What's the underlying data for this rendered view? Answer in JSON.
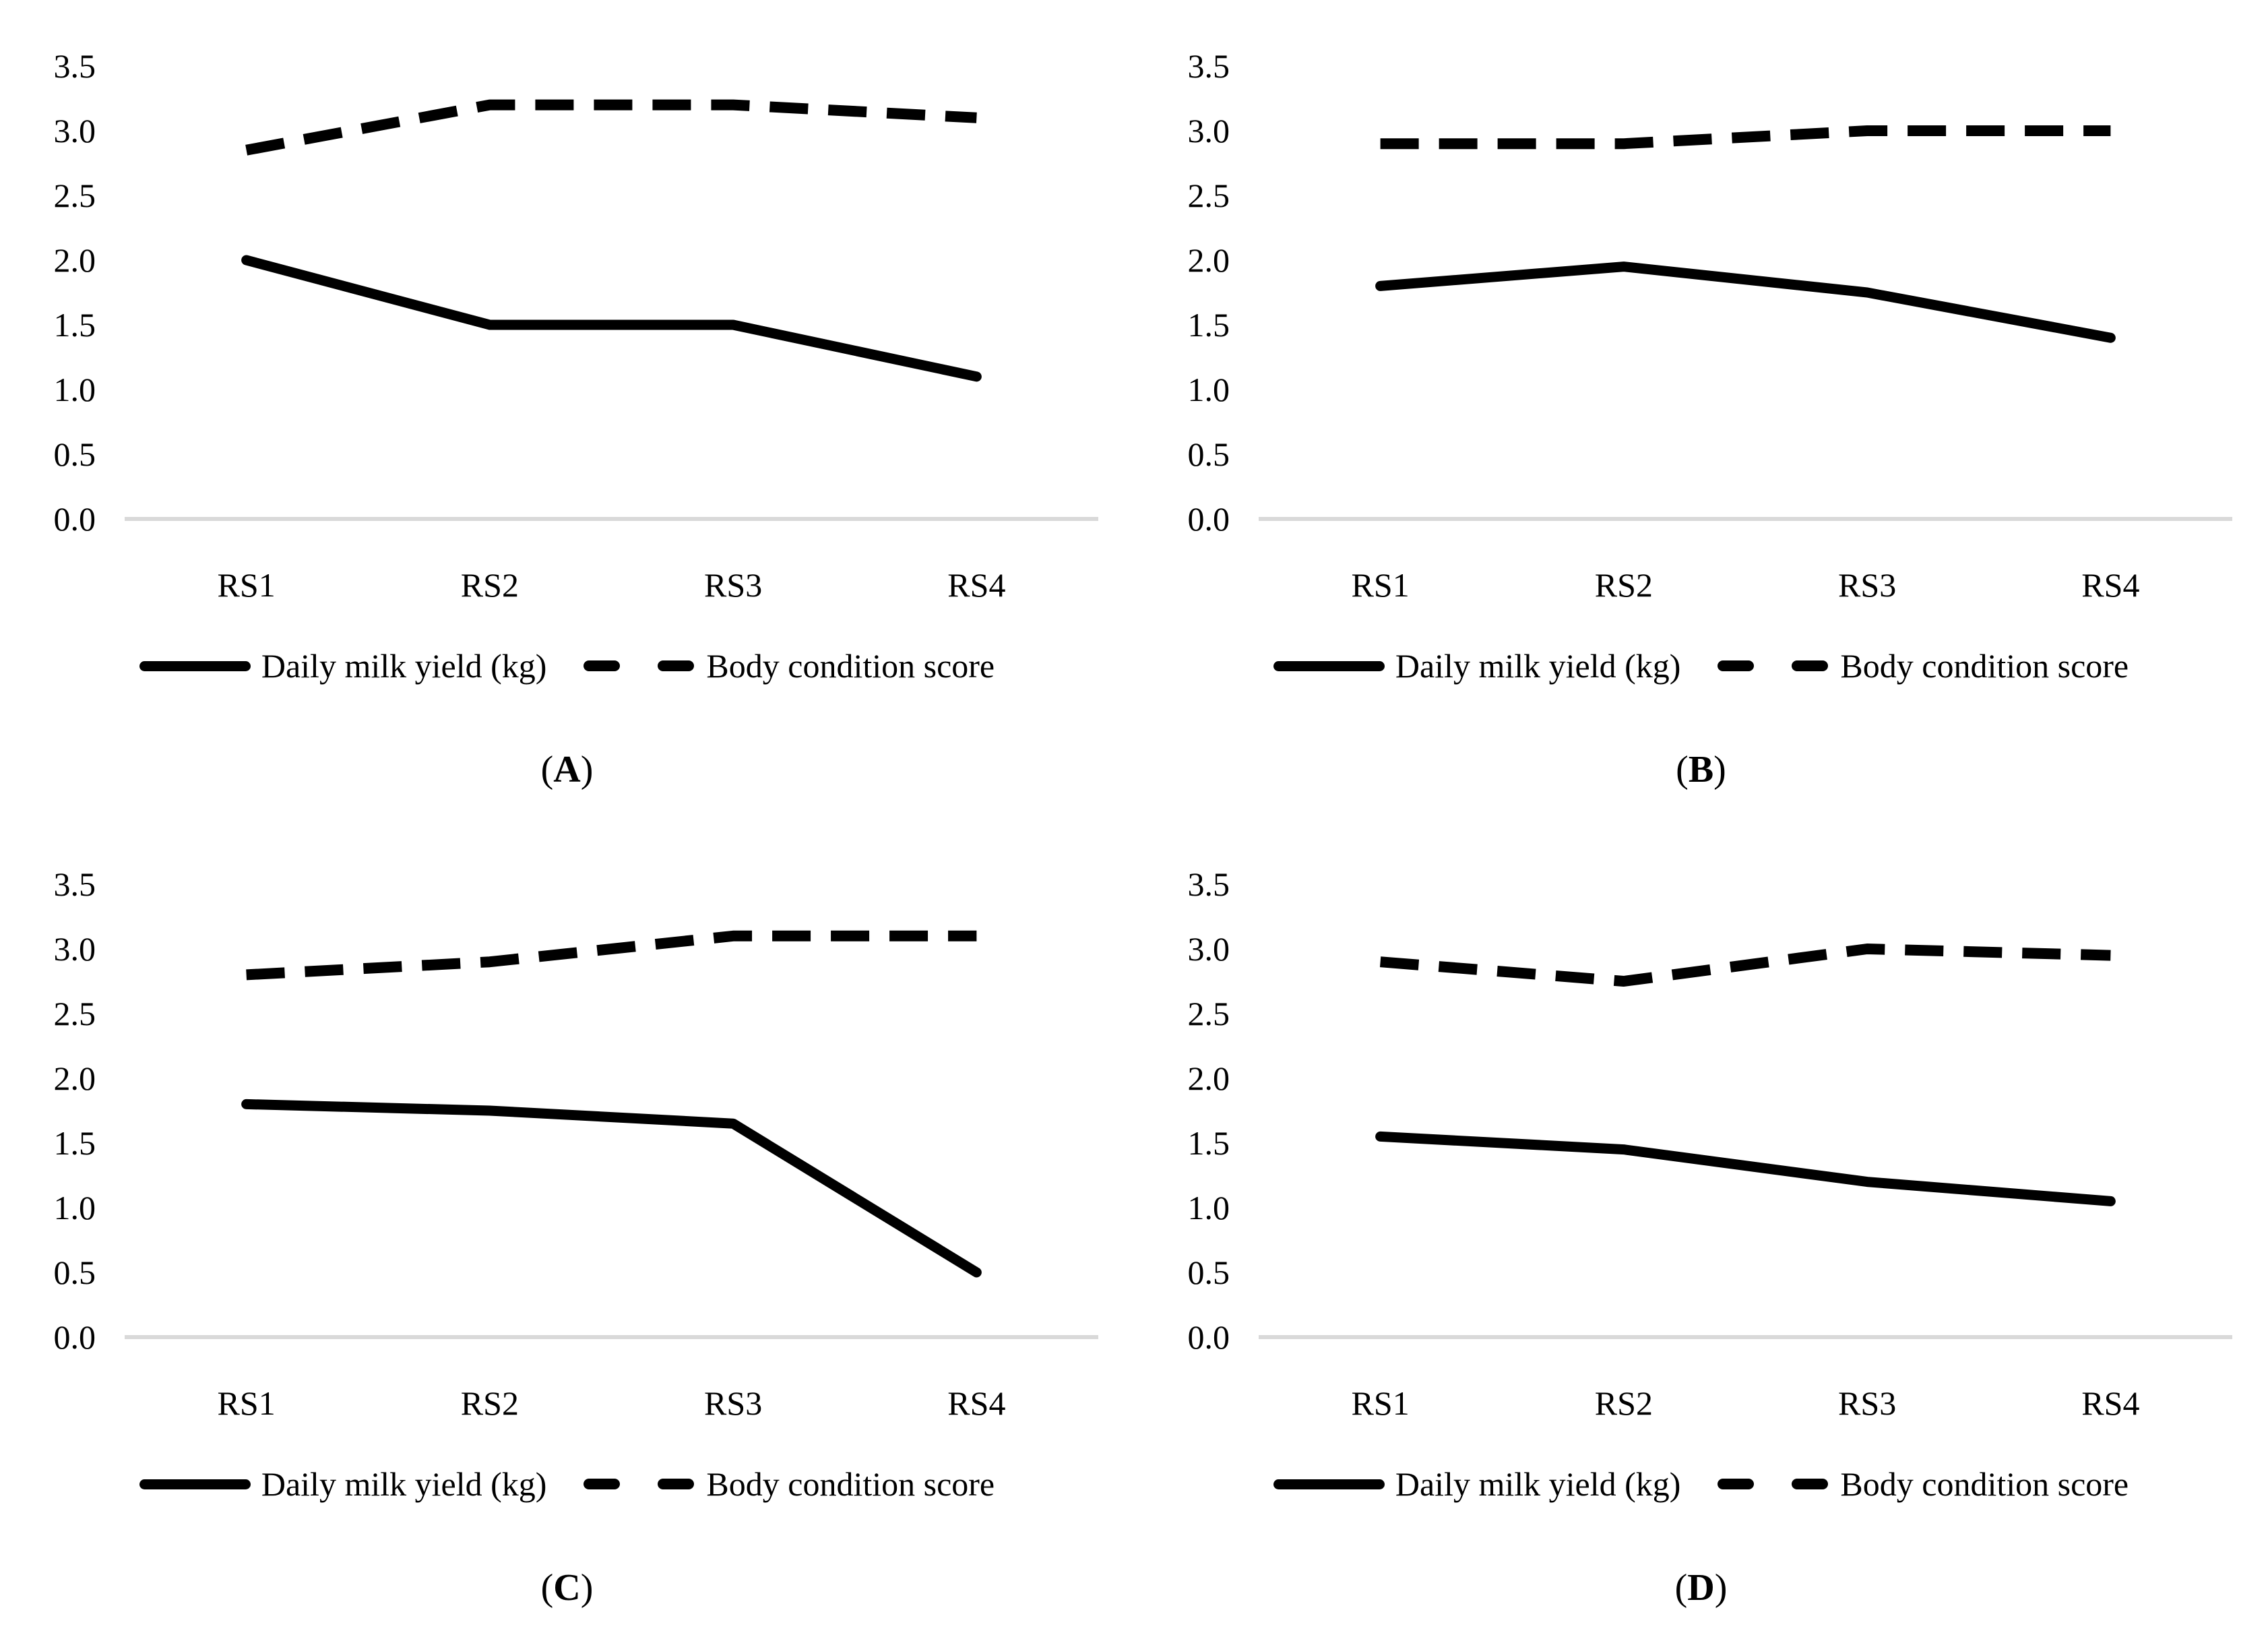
{
  "colors": {
    "series_line": "#000000",
    "zero_baseline": "#d9d9d9",
    "text": "#000000",
    "background": "#ffffff"
  },
  "chart_data": [
    {
      "type": "line",
      "panel_label": "A",
      "caption_open": "(",
      "caption_close": ")",
      "categories": [
        "RS1",
        "RS2",
        "RS3",
        "RS4"
      ],
      "ylim": [
        0,
        3.5
      ],
      "yticks": [
        0,
        0.5,
        1,
        1.5,
        2,
        2.5,
        3,
        3.5
      ],
      "ytick_labels": [
        "0.0",
        "0.5",
        "1.0",
        "1.5",
        "2.0",
        "2.5",
        "3.0",
        "3.5"
      ],
      "grid": false,
      "legend_position": "bottom",
      "series": [
        {
          "name": "Daily milk yield (kg)",
          "line_style": "solid",
          "values": [
            2.0,
            1.5,
            1.5,
            1.1
          ]
        },
        {
          "name": "Body condition score",
          "line_style": "dashed",
          "values": [
            2.85,
            3.2,
            3.2,
            3.1
          ]
        }
      ]
    },
    {
      "type": "line",
      "panel_label": "B",
      "caption_open": "(",
      "caption_close": ")",
      "categories": [
        "RS1",
        "RS2",
        "RS3",
        "RS4"
      ],
      "ylim": [
        0,
        3.5
      ],
      "yticks": [
        0,
        0.5,
        1,
        1.5,
        2,
        2.5,
        3,
        3.5
      ],
      "ytick_labels": [
        "0.0",
        "0.5",
        "1.0",
        "1.5",
        "2.0",
        "2.5",
        "3.0",
        "3.5"
      ],
      "grid": false,
      "legend_position": "bottom",
      "series": [
        {
          "name": "Daily milk yield (kg)",
          "line_style": "solid",
          "values": [
            1.8,
            1.95,
            1.75,
            1.4
          ]
        },
        {
          "name": "Body condition score",
          "line_style": "dashed",
          "values": [
            2.9,
            2.9,
            3.0,
            3.0
          ]
        }
      ]
    },
    {
      "type": "line",
      "panel_label": "C",
      "caption_open": "(",
      "caption_close": ")",
      "categories": [
        "RS1",
        "RS2",
        "RS3",
        "RS4"
      ],
      "ylim": [
        0,
        3.5
      ],
      "yticks": [
        0,
        0.5,
        1,
        1.5,
        2,
        2.5,
        3,
        3.5
      ],
      "ytick_labels": [
        "0.0",
        "0.5",
        "1.0",
        "1.5",
        "2.0",
        "2.5",
        "3.0",
        "3.5"
      ],
      "grid": false,
      "legend_position": "bottom",
      "series": [
        {
          "name": "Daily milk yield (kg)",
          "line_style": "solid",
          "values": [
            1.8,
            1.75,
            1.65,
            0.5
          ]
        },
        {
          "name": "Body condition score",
          "line_style": "dashed",
          "values": [
            2.8,
            2.9,
            3.1,
            3.1
          ]
        }
      ]
    },
    {
      "type": "line",
      "panel_label": "D",
      "caption_open": "(",
      "caption_close": ")",
      "categories": [
        "RS1",
        "RS2",
        "RS3",
        "RS4"
      ],
      "ylim": [
        0,
        3.5
      ],
      "yticks": [
        0,
        0.5,
        1,
        1.5,
        2,
        2.5,
        3,
        3.5
      ],
      "ytick_labels": [
        "0.0",
        "0.5",
        "1.0",
        "1.5",
        "2.0",
        "2.5",
        "3.0",
        "3.5"
      ],
      "grid": false,
      "legend_position": "bottom",
      "series": [
        {
          "name": "Daily milk yield (kg)",
          "line_style": "solid",
          "values": [
            1.55,
            1.45,
            1.2,
            1.05
          ]
        },
        {
          "name": "Body condition score",
          "line_style": "dashed",
          "values": [
            2.9,
            2.75,
            3.0,
            2.95
          ]
        }
      ]
    }
  ]
}
